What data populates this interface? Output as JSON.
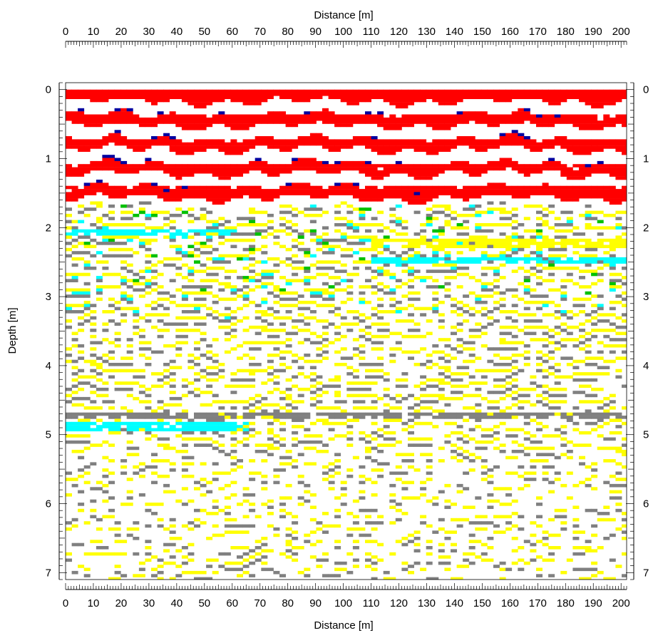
{
  "chart_data": {
    "type": "heatmap",
    "subtype": "ground-penetrating radar profile (radargram)",
    "title": "",
    "xlabel": "Distance [m]",
    "ylabel": "Depth [m]",
    "xlim": [
      0,
      202
    ],
    "ylim": [
      7.1,
      -0.1
    ],
    "y_inverted": true,
    "x_ticks": [
      0,
      10,
      20,
      30,
      40,
      50,
      60,
      70,
      80,
      90,
      100,
      110,
      120,
      130,
      140,
      150,
      160,
      170,
      180,
      190,
      200
    ],
    "y_ticks": [
      0,
      1,
      2,
      3,
      4,
      5,
      6,
      7
    ],
    "x_axis_positions": [
      "top",
      "bottom"
    ],
    "y_axis_positions": [
      "left",
      "right"
    ],
    "grid": false,
    "legend": "none",
    "colors": {
      "strong_positive": "#ff0000",
      "moderate_positive": "#ffff00",
      "moderate_negative": "#808080",
      "strong_negative": "#00ffff",
      "accent_green": "#00c000",
      "accent_blue": "#0000a0",
      "accent_magenta": "#c000c0",
      "background": "#ffffff"
    },
    "reflectors": [
      {
        "depth": 0.05,
        "x_range": [
          0,
          202
        ],
        "color": "strong_positive"
      },
      {
        "depth": 0.4,
        "x_range": [
          0,
          202
        ],
        "color": "strong_positive"
      },
      {
        "depth": 0.75,
        "x_range": [
          0,
          202
        ],
        "color": "strong_positive"
      },
      {
        "depth": 1.1,
        "x_range": [
          0,
          202
        ],
        "color": "strong_positive"
      },
      {
        "depth": 1.45,
        "x_range": [
          0,
          202
        ],
        "color": "strong_positive"
      },
      {
        "depth": 2.05,
        "x_range": [
          0,
          60
        ],
        "color": "strong_negative"
      },
      {
        "depth": 2.2,
        "x_range": [
          110,
          202
        ],
        "color": "moderate_positive"
      },
      {
        "depth": 2.45,
        "x_range": [
          110,
          202
        ],
        "color": "strong_negative"
      },
      {
        "depth": 4.7,
        "x_range": [
          0,
          202
        ],
        "color": "moderate_negative"
      },
      {
        "depth": 4.85,
        "x_range": [
          0,
          65
        ],
        "color": "strong_negative"
      }
    ]
  }
}
